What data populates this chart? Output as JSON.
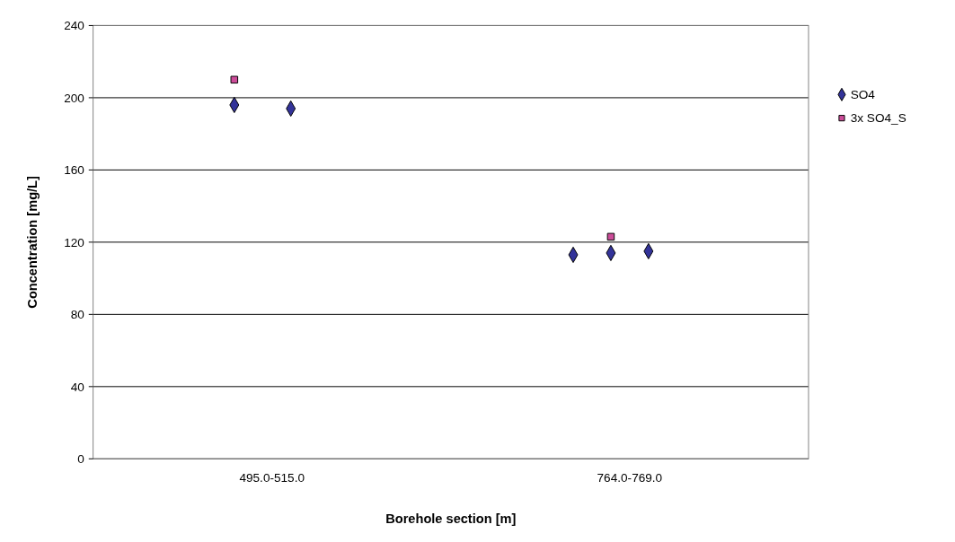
{
  "chart_data": {
    "type": "scatter",
    "xlabel": "Borehole section [m]",
    "ylabel": "Concentration [mg/L]",
    "categories": [
      null,
      null,
      null,
      null,
      null,
      null,
      null,
      null,
      null,
      "495.0-515.0",
      null,
      null,
      null,
      null,
      null,
      null,
      null,
      null,
      null,
      null,
      null,
      null,
      null,
      null,
      null,
      null,
      null,
      null,
      "764.0-769.0",
      null,
      null,
      null,
      null,
      null,
      null,
      null,
      null,
      null
    ],
    "ylim": [
      0,
      240
    ],
    "yticks": [
      0,
      40,
      80,
      120,
      160,
      200,
      240
    ],
    "grid": "y",
    "legend": "right",
    "series": [
      {
        "name": "SO4",
        "color": "#333399",
        "marker": "diamond",
        "values": [
          null,
          null,
          null,
          null,
          null,
          null,
          null,
          196,
          null,
          null,
          194,
          null,
          null,
          null,
          null,
          null,
          null,
          null,
          null,
          null,
          null,
          null,
          null,
          null,
          null,
          113,
          null,
          114,
          null,
          115,
          null,
          null,
          null,
          null,
          null,
          null,
          null,
          null
        ]
      },
      {
        "name": "3x SO4_S",
        "color": "#cc4c99",
        "marker": "square",
        "values": [
          null,
          null,
          null,
          null,
          null,
          null,
          null,
          210,
          null,
          null,
          null,
          null,
          null,
          null,
          null,
          null,
          null,
          null,
          null,
          null,
          null,
          null,
          null,
          null,
          null,
          null,
          null,
          123,
          null,
          null,
          null,
          null,
          null,
          null,
          null,
          null,
          null,
          null
        ]
      }
    ]
  }
}
